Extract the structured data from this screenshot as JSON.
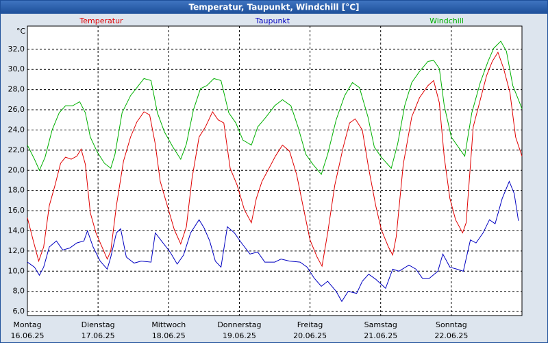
{
  "chart_data": {
    "type": "line",
    "title": "Temperatur, Taupunkt, Windchill [°C]",
    "y_label": "°C",
    "xlim": [
      0,
      7
    ],
    "ylim": [
      5.6,
      34.3
    ],
    "grid": true,
    "legend": "top",
    "xticks": [
      {
        "value": 0,
        "label": "Montag",
        "sublabel": "16.06.25"
      },
      {
        "value": 1,
        "label": "Dienstag",
        "sublabel": "17.06.25"
      },
      {
        "value": 2,
        "label": "Mittwoch",
        "sublabel": "18.06.25"
      },
      {
        "value": 3,
        "label": "Donnerstag",
        "sublabel": "19.06.25"
      },
      {
        "value": 4,
        "label": "Freitag",
        "sublabel": "20.06.25"
      },
      {
        "value": 5,
        "label": "Samstag",
        "sublabel": "21.06.25"
      },
      {
        "value": 6,
        "label": "Sonntag",
        "sublabel": "22.06.25"
      }
    ],
    "yticks": [
      {
        "value": 6,
        "label": "6,0"
      },
      {
        "value": 8,
        "label": "8,0"
      },
      {
        "value": 10,
        "label": "10,0"
      },
      {
        "value": 12,
        "label": "12,0"
      },
      {
        "value": 14,
        "label": "14,0"
      },
      {
        "value": 16,
        "label": "16,0"
      },
      {
        "value": 18,
        "label": "18,0"
      },
      {
        "value": 20,
        "label": "20,0"
      },
      {
        "value": 22,
        "label": "22,0"
      },
      {
        "value": 24,
        "label": "24,0"
      },
      {
        "value": 26,
        "label": "26,0"
      },
      {
        "value": 28,
        "label": "28,0"
      },
      {
        "value": 30,
        "label": "30,0"
      },
      {
        "value": 32,
        "label": "32,0"
      }
    ],
    "series": [
      {
        "name": "Temperatur",
        "color": "#e00000",
        "x": [
          0,
          0.08,
          0.16,
          0.23,
          0.31,
          0.39,
          0.47,
          0.54,
          0.62,
          0.7,
          0.76,
          0.82,
          0.89,
          0.97,
          1.05,
          1.13,
          1.18,
          1.26,
          1.36,
          1.46,
          1.55,
          1.65,
          1.73,
          1.81,
          1.88,
          1.98,
          2.08,
          2.17,
          2.25,
          2.33,
          2.43,
          2.52,
          2.62,
          2.7,
          2.78,
          2.87,
          2.97,
          3.07,
          3.17,
          3.24,
          3.32,
          3.42,
          3.51,
          3.61,
          3.71,
          3.81,
          3.9,
          4.0,
          4.1,
          4.17,
          4.25,
          4.35,
          4.47,
          4.56,
          4.64,
          4.74,
          4.83,
          4.93,
          5.01,
          5.11,
          5.17,
          5.22,
          5.32,
          5.44,
          5.55,
          5.67,
          5.75,
          5.83,
          5.9,
          5.98,
          6.06,
          6.16,
          6.21,
          6.31,
          6.41,
          6.5,
          6.58,
          6.66,
          6.74,
          6.83,
          6.91,
          7.0
        ],
        "values": [
          15.3,
          13.1,
          11.0,
          12.4,
          16.5,
          18.5,
          20.7,
          21.3,
          21.1,
          21.4,
          22.1,
          20.6,
          15.8,
          13.8,
          12.5,
          11.2,
          12.0,
          16.5,
          20.9,
          23.3,
          24.8,
          25.8,
          25.5,
          22.6,
          18.9,
          16.5,
          14.1,
          12.7,
          14.4,
          19.2,
          23.3,
          24.3,
          25.8,
          25.0,
          24.7,
          20.2,
          18.5,
          16.1,
          14.8,
          17.2,
          18.9,
          20.2,
          21.4,
          22.5,
          21.9,
          19.6,
          16.5,
          13.1,
          11.4,
          10.5,
          13.8,
          18.5,
          22.3,
          24.7,
          25.1,
          24.0,
          20.2,
          16.5,
          14.1,
          12.4,
          11.6,
          13.4,
          20.6,
          25.3,
          27.2,
          28.4,
          28.9,
          26.7,
          21.3,
          17.2,
          15.1,
          13.8,
          14.8,
          24.3,
          27.0,
          29.4,
          30.8,
          31.7,
          30.1,
          27.7,
          23.3,
          21.4
        ]
      },
      {
        "name": "Taupunkt",
        "color": "#0000c0",
        "x": [
          0,
          0.1,
          0.17,
          0.23,
          0.31,
          0.41,
          0.5,
          0.6,
          0.7,
          0.8,
          0.85,
          0.93,
          1.03,
          1.13,
          1.18,
          1.26,
          1.32,
          1.4,
          1.51,
          1.61,
          1.75,
          1.81,
          1.92,
          2.02,
          2.12,
          2.21,
          2.31,
          2.43,
          2.5,
          2.58,
          2.66,
          2.74,
          2.83,
          2.93,
          3.03,
          3.15,
          3.26,
          3.36,
          3.5,
          3.59,
          3.71,
          3.86,
          3.96,
          4.06,
          4.16,
          4.25,
          4.37,
          4.45,
          4.54,
          4.66,
          4.74,
          4.83,
          4.93,
          5.07,
          5.17,
          5.26,
          5.4,
          5.5,
          5.59,
          5.69,
          5.81,
          5.88,
          5.98,
          6.08,
          6.17,
          6.27,
          6.35,
          6.45,
          6.54,
          6.62,
          6.72,
          6.82,
          6.89,
          6.95
        ],
        "values": [
          10.9,
          10.4,
          9.6,
          10.4,
          12.4,
          13.0,
          12.1,
          12.3,
          12.8,
          13.0,
          14.0,
          12.4,
          11.0,
          10.2,
          11.4,
          13.8,
          14.2,
          11.4,
          10.8,
          11.0,
          10.9,
          13.8,
          12.8,
          11.9,
          10.7,
          11.6,
          13.8,
          15.1,
          14.3,
          13.0,
          11.0,
          10.4,
          14.4,
          13.8,
          12.8,
          11.7,
          11.9,
          10.9,
          10.9,
          11.2,
          11.0,
          10.9,
          10.4,
          9.3,
          8.5,
          9.0,
          8.0,
          7.0,
          8.0,
          7.8,
          9.0,
          9.7,
          9.2,
          8.3,
          10.2,
          10.0,
          10.6,
          10.2,
          9.3,
          9.3,
          10.0,
          11.7,
          10.4,
          10.2,
          10.0,
          13.1,
          12.8,
          13.8,
          15.1,
          14.7,
          17.2,
          18.9,
          17.7,
          15.0
        ]
      },
      {
        "name": "Windchill",
        "color": "#00b000",
        "x": [
          0,
          0.1,
          0.17,
          0.25,
          0.35,
          0.45,
          0.54,
          0.64,
          0.74,
          0.82,
          0.89,
          0.99,
          1.09,
          1.18,
          1.24,
          1.34,
          1.46,
          1.55,
          1.65,
          1.75,
          1.84,
          1.94,
          2.06,
          2.17,
          2.25,
          2.35,
          2.45,
          2.54,
          2.64,
          2.74,
          2.85,
          2.95,
          3.05,
          3.17,
          3.26,
          3.38,
          3.5,
          3.61,
          3.73,
          3.83,
          3.94,
          4.04,
          4.16,
          4.25,
          4.37,
          4.49,
          4.6,
          4.7,
          4.82,
          4.91,
          5.01,
          5.15,
          5.24,
          5.34,
          5.44,
          5.55,
          5.67,
          5.75,
          5.83,
          5.9,
          6.0,
          6.1,
          6.19,
          6.29,
          6.41,
          6.52,
          6.6,
          6.7,
          6.78,
          6.87,
          6.95,
          7.0
        ],
        "values": [
          22.5,
          21.1,
          20.0,
          21.3,
          24.0,
          25.7,
          26.4,
          26.4,
          26.8,
          25.7,
          23.3,
          21.8,
          20.7,
          20.2,
          21.6,
          25.7,
          27.4,
          28.2,
          29.1,
          28.9,
          25.7,
          23.8,
          22.3,
          21.1,
          22.6,
          26.0,
          28.1,
          28.4,
          29.1,
          28.9,
          25.7,
          24.7,
          23.0,
          22.5,
          24.3,
          25.3,
          26.4,
          27.0,
          26.4,
          24.3,
          21.6,
          20.6,
          19.6,
          21.6,
          25.0,
          27.4,
          28.7,
          28.2,
          25.3,
          22.3,
          21.3,
          20.2,
          22.6,
          26.4,
          28.7,
          29.8,
          30.8,
          30.9,
          30.1,
          26.4,
          23.3,
          22.3,
          21.4,
          25.7,
          28.7,
          30.8,
          32.1,
          32.8,
          31.8,
          28.4,
          27.0,
          26.1
        ]
      }
    ]
  }
}
